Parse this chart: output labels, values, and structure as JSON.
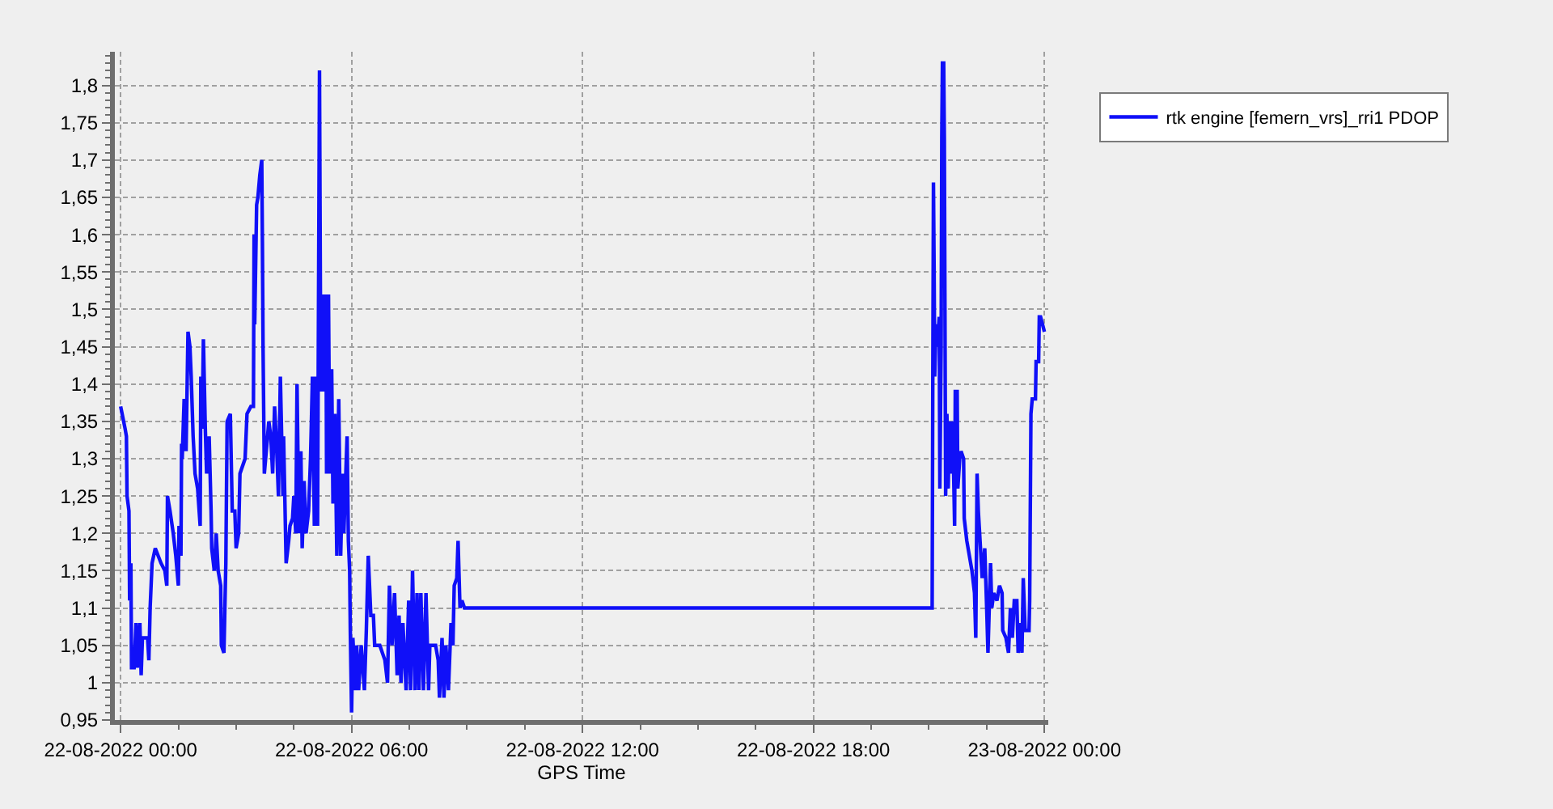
{
  "chart_data": {
    "type": "line",
    "xlabel": "GPS Time",
    "xlim": [
      "2022-08-21T23:51",
      "2022-08-23T00:06"
    ],
    "xticks": [
      {
        "value": "2022-08-22T00:00",
        "label": "22-08-2022 00:00"
      },
      {
        "value": "2022-08-22T06:00",
        "label": "22-08-2022 06:00"
      },
      {
        "value": "2022-08-22T12:00",
        "label": "22-08-2022 12:00"
      },
      {
        "value": "2022-08-22T18:00",
        "label": "22-08-2022 18:00"
      },
      {
        "value": "2022-08-23T00:00",
        "label": "23-08-2022 00:00"
      }
    ],
    "ylim": [
      0.95,
      1.845
    ],
    "yticks": [
      {
        "value": 0.95,
        "label": "0,95"
      },
      {
        "value": 1,
        "label": "1"
      },
      {
        "value": 1.05,
        "label": "1,05"
      },
      {
        "value": 1.1,
        "label": "1,1"
      },
      {
        "value": 1.15,
        "label": "1,15"
      },
      {
        "value": 1.2,
        "label": "1,2"
      },
      {
        "value": 1.25,
        "label": "1,25"
      },
      {
        "value": 1.3,
        "label": "1,3"
      },
      {
        "value": 1.35,
        "label": "1,35"
      },
      {
        "value": 1.4,
        "label": "1,4"
      },
      {
        "value": 1.45,
        "label": "1,45"
      },
      {
        "value": 1.5,
        "label": "1,5"
      },
      {
        "value": 1.55,
        "label": "1,55"
      },
      {
        "value": 1.6,
        "label": "1,6"
      },
      {
        "value": 1.65,
        "label": "1,65"
      },
      {
        "value": 1.7,
        "label": "1,7"
      },
      {
        "value": 1.75,
        "label": "1,75"
      },
      {
        "value": 1.8,
        "label": "1,8"
      }
    ],
    "grid": true,
    "legend": "top right",
    "line_style": "solid",
    "x": [
      "2022-08-22T00:00",
      "2022-08-22T00:07",
      "2022-08-22T00:09",
      "2022-08-22T00:10",
      "2022-08-22T00:13",
      "2022-08-22T00:14",
      "2022-08-22T00:16",
      "2022-08-22T00:17",
      "2022-08-22T00:21",
      "2022-08-22T00:24",
      "2022-08-22T00:26",
      "2022-08-22T00:30",
      "2022-08-22T00:32",
      "2022-08-22T00:34",
      "2022-08-22T00:42",
      "2022-08-22T00:44",
      "2022-08-22T00:46",
      "2022-08-22T00:49",
      "2022-08-22T00:54",
      "2022-08-22T01:03",
      "2022-08-22T01:09",
      "2022-08-22T01:12",
      "2022-08-22T01:13",
      "2022-08-22T01:17",
      "2022-08-22T01:22",
      "2022-08-22T01:26",
      "2022-08-22T01:30",
      "2022-08-22T01:31",
      "2022-08-22T01:34",
      "2022-08-22T01:35",
      "2022-08-22T01:36",
      "2022-08-22T01:39",
      "2022-08-22T01:42",
      "2022-08-22T01:45",
      "2022-08-22T01:48",
      "2022-08-22T01:50",
      "2022-08-22T01:53",
      "2022-08-22T01:56",
      "2022-08-22T02:00",
      "2022-08-22T02:04",
      "2022-08-22T02:05",
      "2022-08-22T02:07",
      "2022-08-22T02:09",
      "2022-08-22T02:12",
      "2022-08-22T02:14",
      "2022-08-22T02:18",
      "2022-08-22T02:21",
      "2022-08-22T02:22",
      "2022-08-22T02:26",
      "2022-08-22T02:29",
      "2022-08-22T02:32",
      "2022-08-22T02:36",
      "2022-08-22T02:37",
      "2022-08-22T02:41",
      "2022-08-22T02:44",
      "2022-08-22T02:46",
      "2022-08-22T02:51",
      "2022-08-22T02:54",
      "2022-08-22T02:58",
      "2022-08-22T03:00",
      "2022-08-22T03:04",
      "2022-08-22T03:06",
      "2022-08-22T03:14",
      "2022-08-22T03:17",
      "2022-08-22T03:23",
      "2022-08-22T03:27",
      "2022-08-22T03:28",
      "2022-08-22T03:29",
      "2022-08-22T03:32",
      "2022-08-22T03:34",
      "2022-08-22T03:37",
      "2022-08-22T03:40",
      "2022-08-22T03:41",
      "2022-08-22T03:42",
      "2022-08-22T03:44",
      "2022-08-22T03:47",
      "2022-08-22T03:51",
      "2022-08-22T03:54",
      "2022-08-22T03:57",
      "2022-08-22T04:00",
      "2022-08-22T04:03",
      "2022-08-22T04:06",
      "2022-08-22T04:09",
      "2022-08-22T04:13",
      "2022-08-22T04:14",
      "2022-08-22T04:18",
      "2022-08-22T04:22",
      "2022-08-22T04:24",
      "2022-08-22T04:28",
      "2022-08-22T04:30",
      "2022-08-22T04:33",
      "2022-08-22T04:35",
      "2022-08-22T04:38",
      "2022-08-22T04:41",
      "2022-08-22T04:43",
      "2022-08-22T04:46",
      "2022-08-22T04:49",
      "2022-08-22T04:53",
      "2022-08-22T04:56",
      "2022-08-22T04:59",
      "2022-08-22T05:02",
      "2022-08-22T05:04",
      "2022-08-22T05:07",
      "2022-08-22T05:10",
      "2022-08-22T05:12",
      "2022-08-22T05:15",
      "2022-08-22T05:17",
      "2022-08-22T05:20",
      "2022-08-22T05:21",
      "2022-08-22T05:24",
      "2022-08-22T05:26",
      "2022-08-22T05:29",
      "2022-08-22T05:31",
      "2022-08-22T05:34",
      "2022-08-22T05:37",
      "2022-08-22T05:40",
      "2022-08-22T05:43",
      "2022-08-22T05:46",
      "2022-08-22T05:48",
      "2022-08-22T05:51",
      "2022-08-22T05:53",
      "2022-08-22T05:55",
      "2022-08-22T05:57",
      "2022-08-22T05:58",
      "2022-08-22T06:00",
      "2022-08-22T06:02",
      "2022-08-22T06:06",
      "2022-08-22T06:08",
      "2022-08-22T06:11",
      "2022-08-22T06:15",
      "2022-08-22T06:20",
      "2022-08-22T06:23",
      "2022-08-22T06:26",
      "2022-08-22T06:30",
      "2022-08-22T06:34",
      "2022-08-22T06:36",
      "2022-08-22T06:44",
      "2022-08-22T06:52",
      "2022-08-22T06:56",
      "2022-08-22T06:59",
      "2022-08-22T07:03",
      "2022-08-22T07:07",
      "2022-08-22T07:11",
      "2022-08-22T07:14",
      "2022-08-22T07:17",
      "2022-08-22T07:20",
      "2022-08-22T07:25",
      "2022-08-22T07:29",
      "2022-08-22T07:32",
      "2022-08-22T07:35",
      "2022-08-22T07:39",
      "2022-08-22T07:42",
      "2022-08-22T07:45",
      "2022-08-22T07:48",
      "2022-08-22T07:52",
      "2022-08-22T07:56",
      "2022-08-22T08:00",
      "2022-08-22T08:02",
      "2022-08-22T08:11",
      "2022-08-22T08:15",
      "2022-08-22T08:17",
      "2022-08-22T08:21",
      "2022-08-22T08:24",
      "2022-08-22T08:27",
      "2022-08-22T08:31",
      "2022-08-22T08:35",
      "2022-08-22T08:38",
      "2022-08-22T08:40",
      "2022-08-22T08:44",
      "2022-08-22T08:46",
      "2022-08-22T08:49",
      "2022-08-22T08:52",
      "2022-08-22T08:56",
      "2022-08-22T21:05",
      "2022-08-22T21:06",
      "2022-08-22T21:07",
      "2022-08-22T21:08",
      "2022-08-22T21:09",
      "2022-08-22T21:11",
      "2022-08-22T21:13",
      "2022-08-22T21:16",
      "2022-08-22T21:17",
      "2022-08-22T21:19",
      "2022-08-22T21:20",
      "2022-08-22T21:21",
      "2022-08-22T21:23",
      "2022-08-22T21:24",
      "2022-08-22T21:26",
      "2022-08-22T21:28",
      "2022-08-22T21:30",
      "2022-08-22T21:32",
      "2022-08-22T21:34",
      "2022-08-22T21:37",
      "2022-08-22T21:40",
      "2022-08-22T21:41",
      "2022-08-22T21:44",
      "2022-08-22T21:45",
      "2022-08-22T21:48",
      "2022-08-22T21:50",
      "2022-08-22T21:54",
      "2022-08-22T21:55",
      "2022-08-22T21:59",
      "2022-08-22T22:03",
      "2022-08-22T22:07",
      "2022-08-22T22:11",
      "2022-08-22T22:13",
      "2022-08-22T22:15",
      "2022-08-22T22:17",
      "2022-08-22T22:19",
      "2022-08-22T22:23",
      "2022-08-22T22:27",
      "2022-08-22T22:30",
      "2022-08-22T22:32",
      "2022-08-22T22:36",
      "2022-08-22T22:38",
      "2022-08-22T22:41",
      "2022-08-22T22:46",
      "2022-08-22T22:50",
      "2022-08-22T22:54",
      "2022-08-22T22:55",
      "2022-08-22T23:00",
      "2022-08-22T23:04",
      "2022-08-22T23:07",
      "2022-08-22T23:10",
      "2022-08-22T23:13",
      "2022-08-22T23:17",
      "2022-08-22T23:19",
      "2022-08-22T23:23",
      "2022-08-22T23:25",
      "2022-08-22T23:27",
      "2022-08-22T23:30",
      "2022-08-22T23:33",
      "2022-08-22T23:36",
      "2022-08-22T23:37",
      "2022-08-22T23:39",
      "2022-08-22T23:41",
      "2022-08-22T23:46",
      "2022-08-22T23:47",
      "2022-08-22T23:51",
      "2022-08-22T23:52",
      "2022-08-22T23:54",
      "2022-08-22T23:57",
      "2022-08-23T00:00"
    ],
    "series": [
      {
        "name": "rtk engine [femern_vrs]_rri1 PDOP",
        "color": "#1010f8",
        "values": [
          1.37,
          1.34,
          1.33,
          1.25,
          1.23,
          1.11,
          1.16,
          1.02,
          1.02,
          1.08,
          1.02,
          1.08,
          1.01,
          1.06,
          1.06,
          1.03,
          1.1,
          1.16,
          1.18,
          1.16,
          1.15,
          1.13,
          1.25,
          1.23,
          1.2,
          1.17,
          1.13,
          1.21,
          1.17,
          1.32,
          1.3,
          1.38,
          1.31,
          1.47,
          1.45,
          1.41,
          1.33,
          1.28,
          1.26,
          1.21,
          1.41,
          1.34,
          1.46,
          1.34,
          1.28,
          1.33,
          1.23,
          1.18,
          1.15,
          1.2,
          1.15,
          1.13,
          1.05,
          1.04,
          1.16,
          1.35,
          1.36,
          1.23,
          1.23,
          1.18,
          1.2,
          1.28,
          1.3,
          1.36,
          1.37,
          1.37,
          1.6,
          1.48,
          1.64,
          1.65,
          1.68,
          1.7,
          1.59,
          1.45,
          1.28,
          1.31,
          1.35,
          1.33,
          1.28,
          1.37,
          1.32,
          1.25,
          1.41,
          1.25,
          1.33,
          1.16,
          1.19,
          1.21,
          1.22,
          1.25,
          1.2,
          1.4,
          1.2,
          1.31,
          1.18,
          1.27,
          1.2,
          1.23,
          1.3,
          1.41,
          1.21,
          1.41,
          1.21,
          1.82,
          1.39,
          1.52,
          1.39,
          1.52,
          1.28,
          1.52,
          1.28,
          1.42,
          1.24,
          1.36,
          1.17,
          1.38,
          1.17,
          1.28,
          1.2,
          1.28,
          1.33,
          1.19,
          1.15,
          1.07,
          0.96,
          1.06,
          0.99,
          1.05,
          0.99,
          1.05,
          0.99,
          1.07,
          1.17,
          1.09,
          1.09,
          1.05,
          1.05,
          1.03,
          1.0,
          1.13,
          1.05,
          1.12,
          1.01,
          1.09,
          1.0,
          1.08,
          0.99,
          1.11,
          0.99,
          1.15,
          0.99,
          1.12,
          0.99,
          1.12,
          0.99,
          1.12,
          0.99,
          1.05,
          1.05,
          1.03,
          0.98,
          1.06,
          0.98,
          1.05,
          0.99,
          1.08,
          1.05,
          1.13,
          1.14,
          1.19,
          1.1,
          1.11,
          1.1,
          1.1,
          1.41,
          1.67,
          1.56,
          1.41,
          1.48,
          1.45,
          1.49,
          1.26,
          1.45,
          1.73,
          1.83,
          1.83,
          1.73,
          1.25,
          1.36,
          1.26,
          1.35,
          1.28,
          1.35,
          1.21,
          1.39,
          1.39,
          1.26,
          1.3,
          1.31,
          1.3,
          1.22,
          1.19,
          1.17,
          1.15,
          1.12,
          1.06,
          1.28,
          1.23,
          1.2,
          1.14,
          1.18,
          1.1,
          1.04,
          1.16,
          1.1,
          1.12,
          1.11,
          1.13,
          1.12,
          1.07,
          1.06,
          1.04,
          1.1,
          1.06,
          1.11,
          1.11,
          1.04,
          1.08,
          1.04,
          1.14,
          1.07,
          1.07,
          1.07,
          1.11,
          1.36,
          1.38,
          1.38,
          1.43,
          1.43,
          1.49,
          1.49,
          1.48,
          1.47
        ]
      }
    ]
  }
}
